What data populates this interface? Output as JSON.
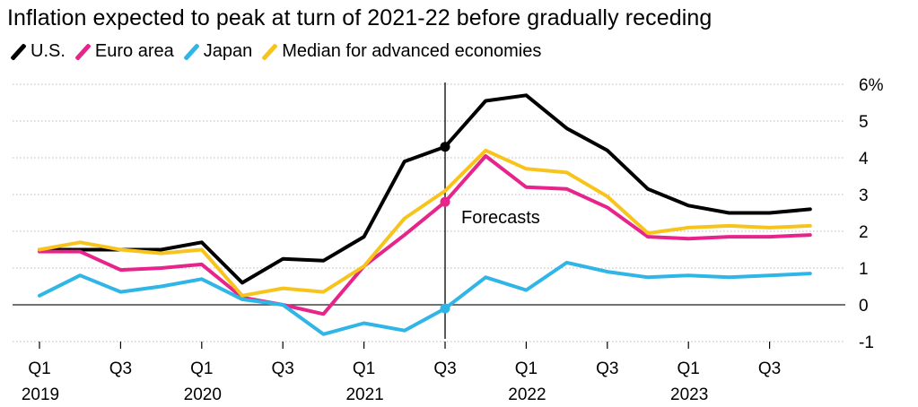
{
  "colors": {
    "us": "#000000",
    "euro": "#e6248a",
    "japan": "#2fb5e6",
    "median": "#f7c41e",
    "grid": "#b8b8b8",
    "zero": "#444444"
  },
  "chart_data": {
    "type": "line",
    "title": "Inflation expected to peak at turn of 2021-22 before gradually receding",
    "x": [
      "2019-Q1",
      "2019-Q2",
      "2019-Q3",
      "2019-Q4",
      "2020-Q1",
      "2020-Q2",
      "2020-Q3",
      "2020-Q4",
      "2021-Q1",
      "2021-Q2",
      "2021-Q3",
      "2021-Q4",
      "2022-Q1",
      "2022-Q2",
      "2022-Q3",
      "2022-Q4",
      "2023-Q1",
      "2023-Q2",
      "2023-Q3",
      "2023-Q4"
    ],
    "x_tick_labels": [
      {
        "quarter": "Q1",
        "year": "2019",
        "x": "2019-Q1"
      },
      {
        "quarter": "Q3",
        "year": "",
        "x": "2019-Q3"
      },
      {
        "quarter": "Q1",
        "year": "2020",
        "x": "2020-Q1"
      },
      {
        "quarter": "Q3",
        "year": "",
        "x": "2020-Q3"
      },
      {
        "quarter": "Q1",
        "year": "2021",
        "x": "2021-Q1"
      },
      {
        "quarter": "Q3",
        "year": "",
        "x": "2021-Q3"
      },
      {
        "quarter": "Q1",
        "year": "2022",
        "x": "2022-Q1"
      },
      {
        "quarter": "Q3",
        "year": "",
        "x": "2022-Q3"
      },
      {
        "quarter": "Q1",
        "year": "2023",
        "x": "2023-Q1"
      },
      {
        "quarter": "Q3",
        "year": "",
        "x": "2023-Q3"
      }
    ],
    "y_ticks": [
      {
        "value": 6,
        "label": "6%"
      },
      {
        "value": 5,
        "label": "5"
      },
      {
        "value": 4,
        "label": "4"
      },
      {
        "value": 3,
        "label": "3"
      },
      {
        "value": 2,
        "label": "2"
      },
      {
        "value": 1,
        "label": "1"
      },
      {
        "value": 0,
        "label": "0"
      },
      {
        "value": -1,
        "label": "-1"
      }
    ],
    "ylim": [
      -1,
      6
    ],
    "grid": true,
    "legend_position": "top-left",
    "forecast_start": "2021-Q3",
    "annotation": "Forecasts",
    "series": [
      {
        "name": "U.S.",
        "color_key": "us",
        "values": [
          1.5,
          1.5,
          1.5,
          1.5,
          1.7,
          0.6,
          1.25,
          1.2,
          1.85,
          3.9,
          4.3,
          5.55,
          5.7,
          4.8,
          4.2,
          3.15,
          2.7,
          2.5,
          2.5,
          2.6
        ]
      },
      {
        "name": "Euro area",
        "color_key": "euro",
        "values": [
          1.45,
          1.45,
          0.95,
          1.0,
          1.1,
          0.2,
          0.0,
          -0.25,
          1.05,
          1.9,
          2.8,
          4.05,
          3.2,
          3.15,
          2.65,
          1.85,
          1.8,
          1.85,
          1.85,
          1.9
        ]
      },
      {
        "name": "Japan",
        "color_key": "japan",
        "values": [
          0.25,
          0.8,
          0.35,
          0.5,
          0.7,
          0.15,
          0.0,
          -0.8,
          -0.5,
          -0.7,
          -0.1,
          0.75,
          0.4,
          1.15,
          0.9,
          0.75,
          0.8,
          0.75,
          0.8,
          0.85
        ]
      },
      {
        "name": "Median for advanced economies",
        "color_key": "median",
        "values": [
          1.5,
          1.7,
          1.5,
          1.4,
          1.5,
          0.25,
          0.45,
          0.35,
          1.05,
          2.35,
          3.1,
          4.2,
          3.7,
          3.6,
          2.95,
          1.95,
          2.1,
          2.15,
          2.1,
          2.15
        ]
      }
    ]
  }
}
